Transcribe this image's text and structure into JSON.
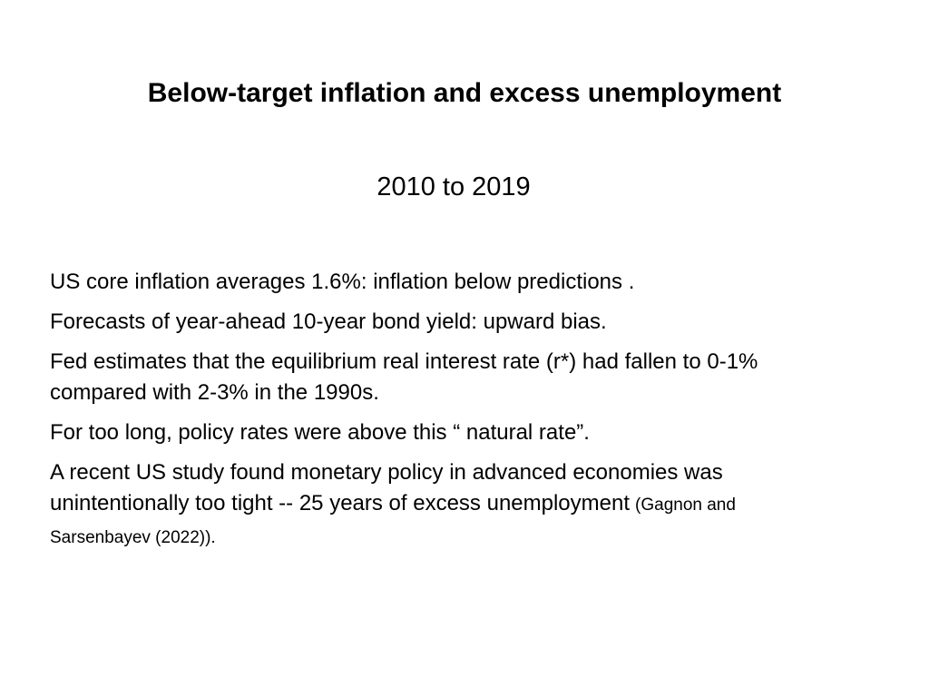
{
  "slide": {
    "title": "Below-target inflation and excess unemployment",
    "subtitle": "2010 to 2019",
    "paragraphs": [
      {
        "text": "US core inflation averages 1.6%: inflation below predictions ."
      },
      {
        "text": "Forecasts of year-ahead 10-year bond yield: upward bias."
      },
      {
        "text": "Fed estimates that the equilibrium real interest rate (r*) had fallen to 0-1% compared with 2-3% in the 1990s."
      },
      {
        "text": "For too long, policy rates were above this “ natural rate”."
      },
      {
        "text": "A recent US study found monetary policy in advanced economies was unintentionally too tight -- 25 years of excess unemployment",
        "citation": "(Gagnon and Sarsenbayev (2022))."
      }
    ]
  }
}
